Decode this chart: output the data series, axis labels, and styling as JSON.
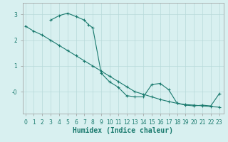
{
  "xlabel": "Humidex (Indice chaleur)",
  "bg_color": "#d8f0f0",
  "line_color": "#1a7a6e",
  "grid_color": "#b8dada",
  "line1_x": [
    0,
    1,
    2,
    3,
    4,
    5,
    6,
    7,
    8,
    9,
    10,
    11,
    12,
    13,
    14,
    15,
    16,
    17,
    18,
    19,
    20,
    21,
    22,
    23
  ],
  "line1_y": [
    2.55,
    2.35,
    2.2,
    2.0,
    1.8,
    1.6,
    1.4,
    1.2,
    1.0,
    0.8,
    0.6,
    0.4,
    0.2,
    0.0,
    -0.1,
    -0.2,
    -0.3,
    -0.38,
    -0.45,
    -0.5,
    -0.52,
    -0.55,
    -0.58,
    -0.6
  ],
  "line2_x": [
    3,
    4,
    5,
    6,
    7,
    7.5,
    8,
    9,
    10,
    11,
    12,
    13,
    14,
    15,
    16,
    17,
    18,
    19,
    20,
    21,
    22,
    23
  ],
  "line2_y": [
    2.78,
    2.95,
    3.05,
    2.92,
    2.78,
    2.6,
    2.48,
    0.72,
    0.38,
    0.18,
    -0.15,
    -0.2,
    -0.2,
    0.28,
    0.32,
    0.08,
    -0.45,
    -0.52,
    -0.55,
    -0.52,
    -0.55,
    -0.08
  ],
  "xlim": [
    -0.3,
    23.5
  ],
  "ylim": [
    -0.85,
    3.45
  ],
  "xticks": [
    0,
    1,
    2,
    3,
    4,
    5,
    6,
    7,
    8,
    9,
    10,
    11,
    12,
    13,
    14,
    15,
    16,
    17,
    18,
    19,
    20,
    21,
    22,
    23
  ],
  "yticks": [
    0.0,
    1.0,
    2.0,
    3.0
  ],
  "ytick_labels": [
    "-0",
    "1",
    "2",
    "3"
  ],
  "marker": "+",
  "markersize": 3.5,
  "linewidth": 0.8,
  "xlabel_fontsize": 7,
  "tick_fontsize": 5.5
}
